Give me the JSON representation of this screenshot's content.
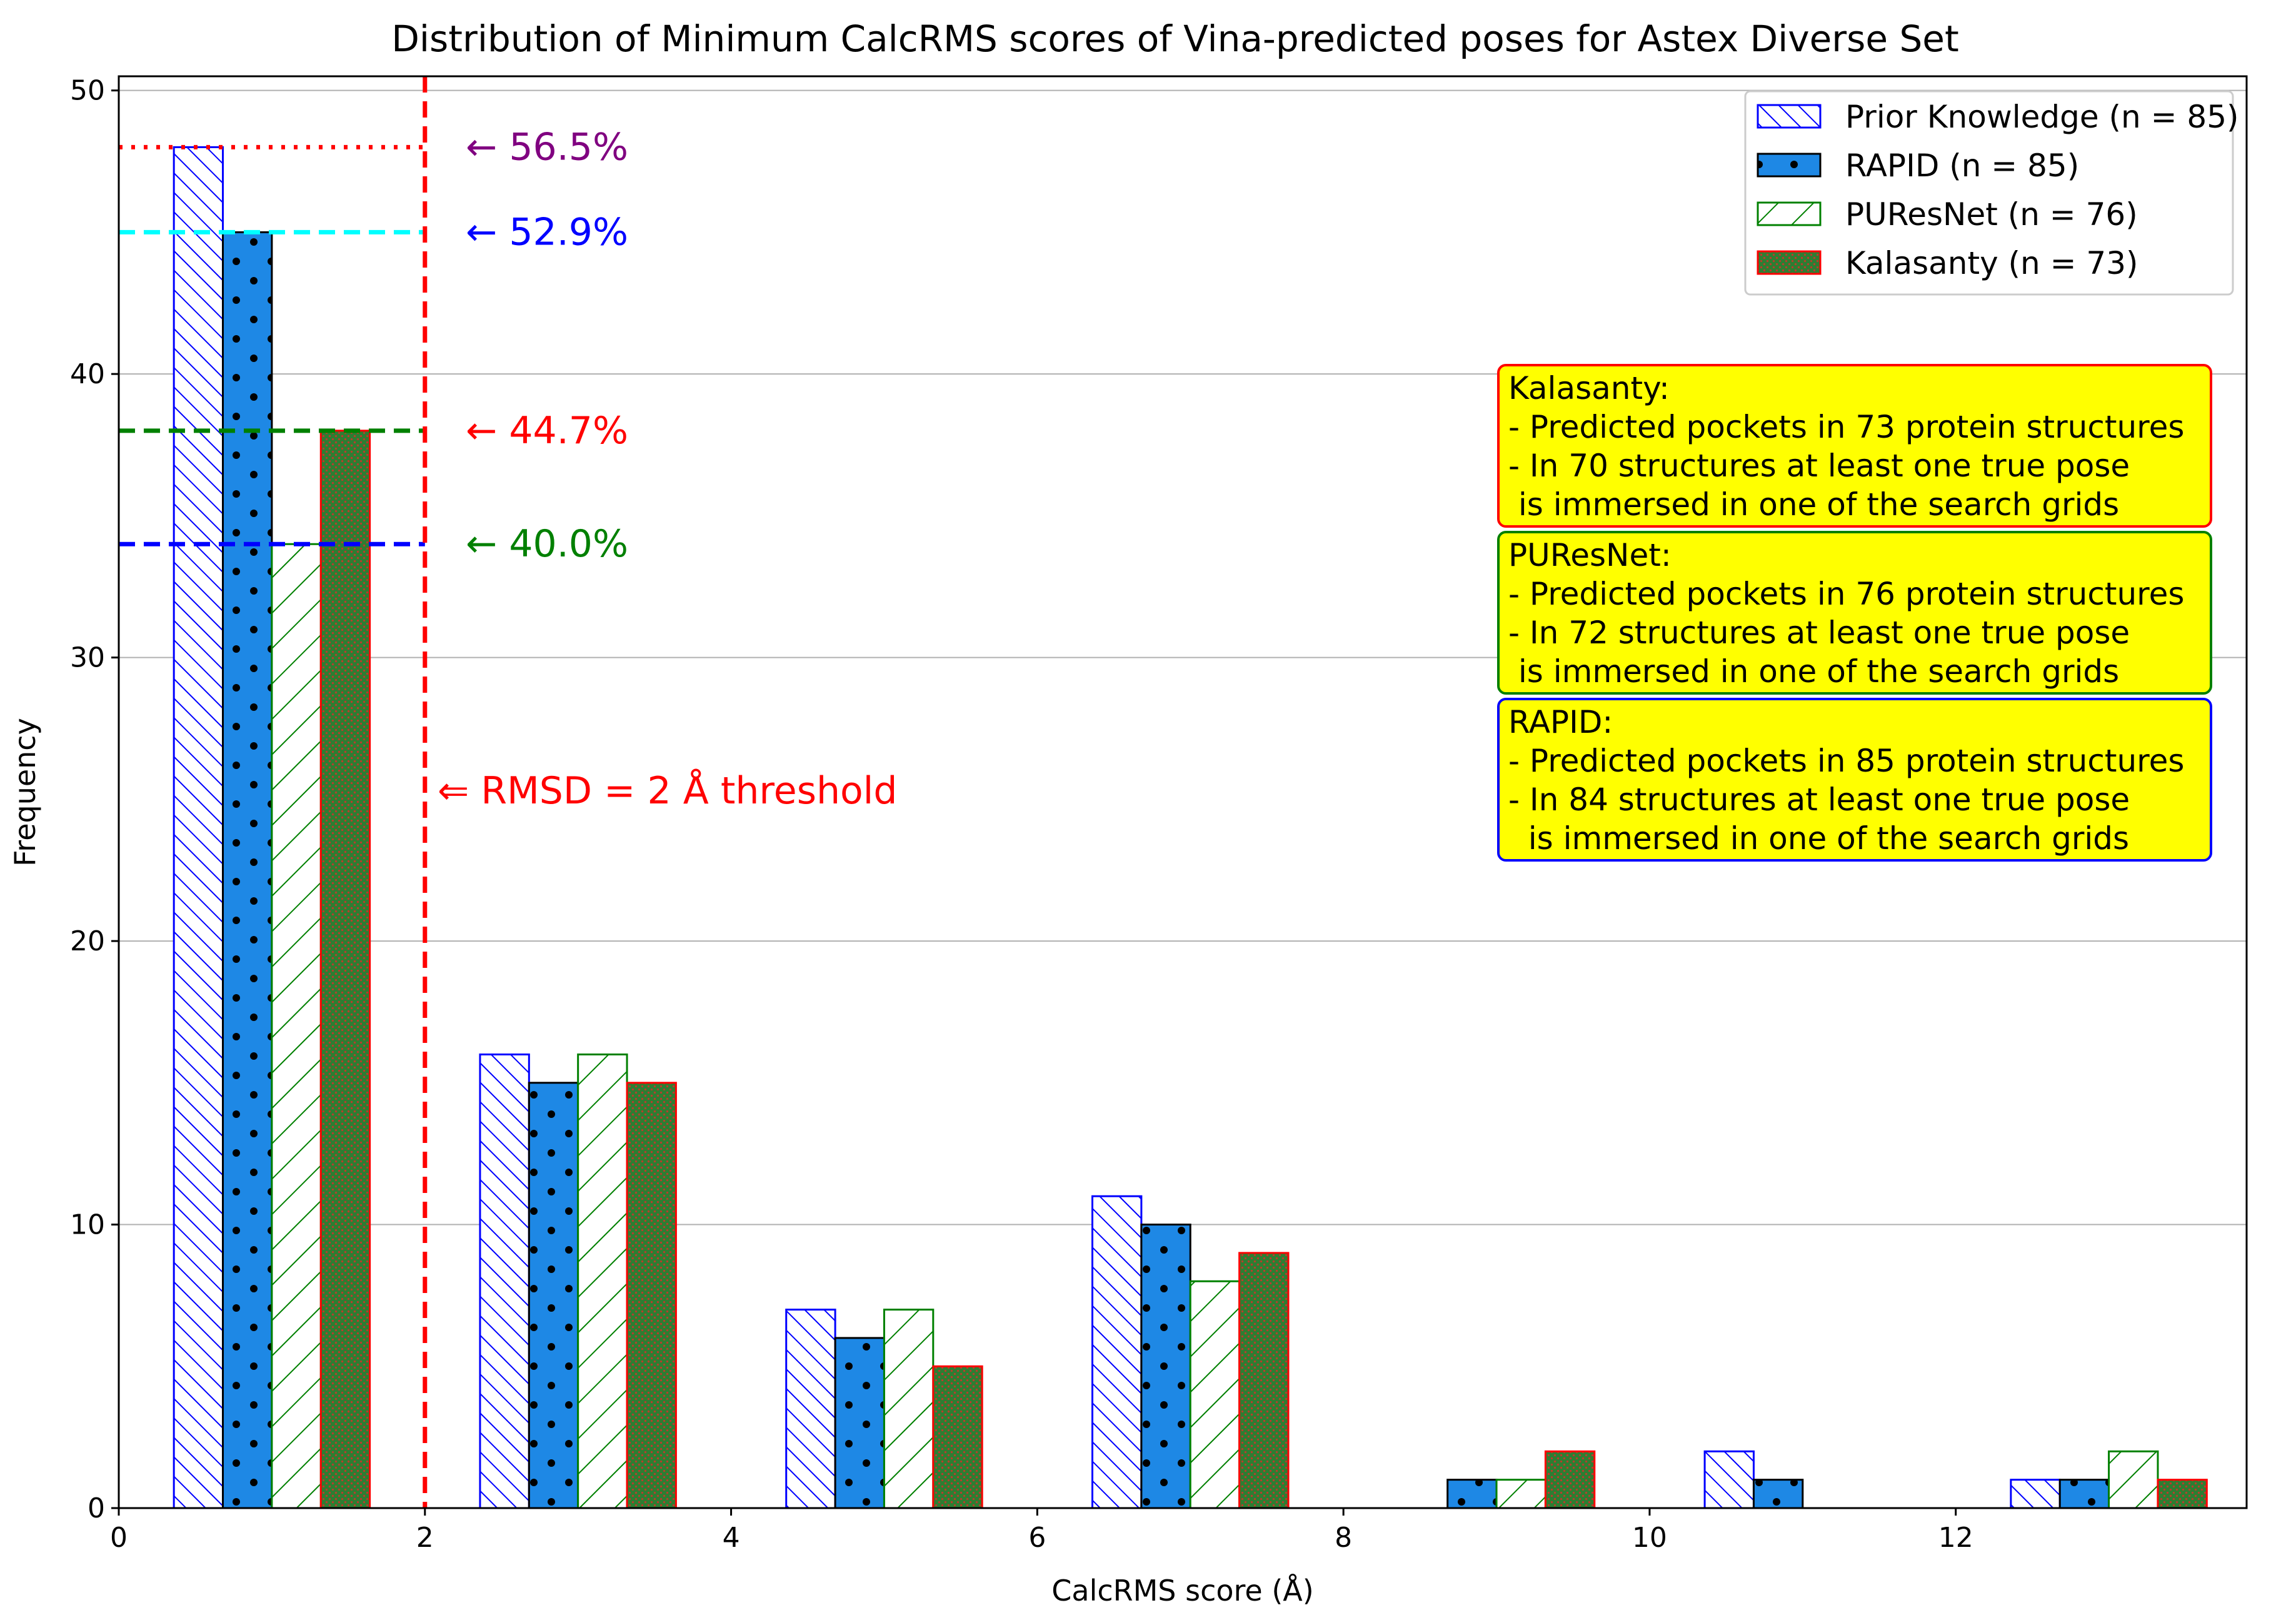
{
  "chart_data": {
    "type": "bar",
    "title": "Distribution of Minimum CalcRMS scores of Vina-predicted poses for Astex Diverse Set",
    "xlabel": "CalcRMS score (Å)",
    "ylabel": "Frequency",
    "xlim": [
      0,
      13.9
    ],
    "ylim": [
      0,
      50.5
    ],
    "xticks": [
      0,
      2,
      4,
      6,
      8,
      10,
      12
    ],
    "yticks": [
      0,
      10,
      20,
      30,
      40,
      50
    ],
    "grid": "horizontal",
    "bin_centers": [
      1,
      3,
      5,
      7,
      9,
      11,
      13
    ],
    "series": [
      {
        "name": "Prior Knowledge",
        "legend": "Prior Knowledge (n = 85)",
        "values": [
          48,
          16,
          7,
          11,
          0,
          2,
          1
        ],
        "edge_color": "#0000ff",
        "fill": "#ffffff",
        "hatch": "diag-up"
      },
      {
        "name": "RAPID",
        "legend": "RAPID (n = 85)",
        "values": [
          45,
          15,
          6,
          10,
          1,
          1,
          1
        ],
        "edge_color": "#000000",
        "fill": "#1e88e5",
        "hatch": "dots"
      },
      {
        "name": "PUResNet",
        "legend": "PUResNet (n = 76)",
        "values": [
          34,
          16,
          7,
          8,
          1,
          0,
          2
        ],
        "edge_color": "#008000",
        "fill": "#ffffff",
        "hatch": "diag-down"
      },
      {
        "name": "Kalasanty",
        "legend": "Kalasanty (n = 73)",
        "values": [
          38,
          15,
          5,
          9,
          2,
          0,
          1
        ],
        "edge_color": "#ff0000",
        "fill": "#2e7d32",
        "hatch": "fine-dots"
      }
    ],
    "threshold": {
      "x": 2,
      "label": "⇐ RMSD = 2 Å threshold",
      "color": "#ff0000"
    },
    "reference_lines": [
      {
        "y": 48,
        "label": "← 56.5%",
        "line_color": "#ff0000",
        "label_color": "#800080",
        "style": "dotted"
      },
      {
        "y": 45,
        "label": "← 52.9%",
        "line_color": "#00ffff",
        "label_color": "#0000ff",
        "style": "dashed"
      },
      {
        "y": 38,
        "label": "← 44.7%",
        "line_color": "#008000",
        "label_color": "#ff0000",
        "style": "dashed"
      },
      {
        "y": 34,
        "label": "← 40.0%",
        "line_color": "#0000ff",
        "label_color": "#008000",
        "style": "dashed"
      }
    ],
    "info_boxes": [
      {
        "name": "Kalasanty",
        "border": "#ff0000",
        "lines": [
          "Kalasanty:",
          "- Predicted pockets in 73 protein structures",
          "- In 70 structures at least one true pose",
          " is immersed in one of the search grids"
        ]
      },
      {
        "name": "PUResNet",
        "border": "#008000",
        "lines": [
          "PUResNet:",
          "- Predicted pockets in 76 protein structures",
          "- In 72 structures at least one true pose",
          " is immersed in one of the search grids"
        ]
      },
      {
        "name": "RAPID",
        "border": "#0000ff",
        "lines": [
          "RAPID:",
          "- Predicted pockets in 85 protein structures",
          "- In 84 structures at least one true pose",
          "  is immersed in one of the search grids"
        ]
      }
    ],
    "info_box_fill": "#ffff00",
    "legend_position": "top-right"
  }
}
